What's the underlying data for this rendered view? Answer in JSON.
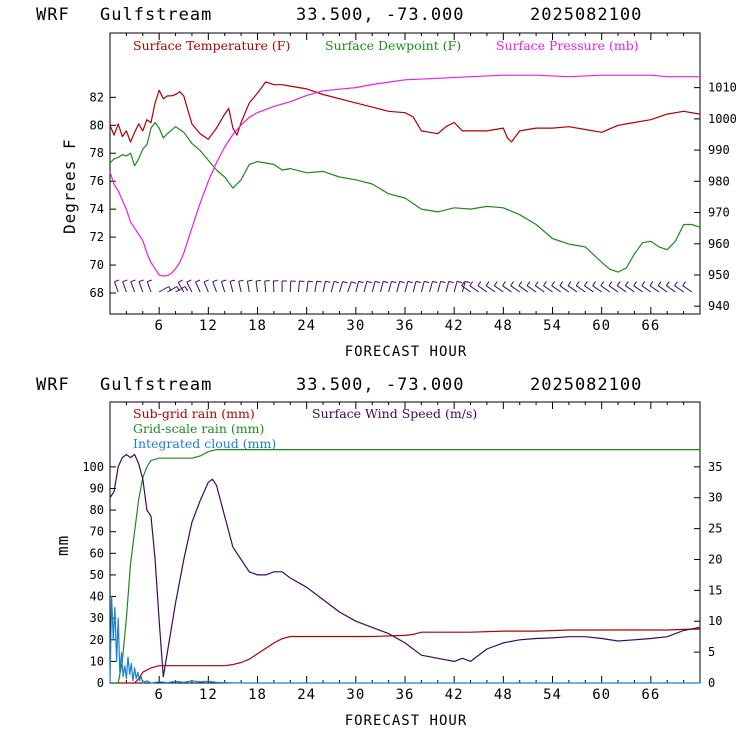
{
  "chart_data": [
    {
      "type": "line",
      "header": {
        "model": "WRF",
        "location": "Gulfstream",
        "coords": "33.500, -73.000",
        "run": "2025082100"
      },
      "xlabel": "FORECAST HOUR",
      "ylabel": "Degrees F",
      "xlim": [
        0,
        72
      ],
      "ylim": [
        66.5,
        86.6
      ],
      "y2lim": [
        937.5,
        1027.5
      ],
      "xticks": [
        6,
        12,
        18,
        24,
        30,
        36,
        42,
        48,
        54,
        60,
        66
      ],
      "xtick_labels": [
        "6",
        "12",
        "18",
        "24",
        "30",
        "36",
        "42",
        "48",
        "54",
        "60",
        "66"
      ],
      "yticks": [
        68,
        70,
        72,
        74,
        76,
        78,
        80,
        82
      ],
      "ytick_labels": [
        "68",
        "70",
        "72",
        "74",
        "76",
        "78",
        "80",
        "82"
      ],
      "y2ticks": [
        940,
        950,
        960,
        970,
        980,
        990,
        1000,
        1010
      ],
      "y2tick_labels": [
        "940",
        "950",
        "960",
        "970",
        "980",
        "990",
        "1000",
        "1010"
      ],
      "grid": false,
      "series": [
        {
          "name": "Surface Temperature (F)",
          "axis": "left",
          "color": "#b00000",
          "x": [
            0,
            0.5,
            1,
            1.5,
            2,
            2.5,
            3,
            3.5,
            4,
            4.5,
            5,
            5.5,
            6,
            6.5,
            7,
            7.5,
            8,
            8.5,
            9,
            9.5,
            10,
            11,
            12,
            13,
            14,
            14.5,
            15,
            15.5,
            16,
            17,
            18,
            19,
            20,
            21,
            22,
            24,
            26,
            28,
            30,
            32,
            34,
            36,
            37,
            38,
            39,
            40,
            41,
            42,
            43,
            44,
            46,
            48,
            48.5,
            49,
            50,
            52,
            54,
            56,
            58,
            60,
            62,
            64,
            66,
            68,
            70,
            72
          ],
          "y": [
            80,
            79.3,
            80.1,
            79.2,
            79.6,
            78.8,
            79.5,
            80.1,
            79.6,
            80.4,
            80.2,
            81.6,
            82.5,
            81.9,
            82.1,
            82.1,
            82.2,
            82.4,
            82.1,
            81.1,
            80.1,
            79.4,
            79,
            79.8,
            80.8,
            81.2,
            79.8,
            79.3,
            80.2,
            81.6,
            82.3,
            83.1,
            82.9,
            82.9,
            82.8,
            82.6,
            82.2,
            81.9,
            81.6,
            81.3,
            81,
            80.9,
            80.6,
            79.6,
            79.5,
            79.4,
            79.9,
            80.2,
            79.6,
            79.6,
            79.6,
            79.8,
            79.1,
            78.8,
            79.6,
            79.8,
            79.8,
            79.9,
            79.7,
            79.5,
            80,
            80.2,
            80.4,
            80.8,
            81,
            80.8
          ]
        },
        {
          "name": "Surface Dewpoint (F)",
          "axis": "left",
          "color": "#1e8a1e",
          "x": [
            0,
            0.5,
            1,
            1.5,
            2,
            2.5,
            3,
            3.5,
            4,
            4.5,
            5,
            5.5,
            6,
            6.5,
            7,
            8,
            9,
            10,
            11,
            12,
            13,
            14,
            15,
            16,
            17,
            18,
            19,
            20,
            21,
            22,
            24,
            26,
            28,
            30,
            32,
            34,
            36,
            38,
            40,
            42,
            44,
            46,
            48,
            50,
            52,
            54,
            56,
            58,
            60,
            61,
            62,
            63,
            64,
            65,
            66,
            67,
            68,
            69,
            70,
            71,
            72
          ],
          "y": [
            77.3,
            77.6,
            77.7,
            77.9,
            77.8,
            78,
            77.1,
            77.6,
            78.3,
            78.6,
            79.8,
            80.2,
            79.8,
            79.1,
            79.4,
            79.9,
            79.5,
            78.7,
            78.2,
            77.5,
            76.8,
            76.3,
            75.5,
            76.1,
            77.2,
            77.4,
            77.3,
            77.2,
            76.8,
            76.9,
            76.6,
            76.7,
            76.3,
            76.1,
            75.8,
            75.1,
            74.8,
            74,
            73.8,
            74.1,
            74,
            74.2,
            74.1,
            73.6,
            72.9,
            71.9,
            71.5,
            71.3,
            70.2,
            69.7,
            69.5,
            69.8,
            70.8,
            71.6,
            71.7,
            71.3,
            71.1,
            71.7,
            72.9,
            72.9,
            72.7
          ]
        },
        {
          "name": "Surface Pressure (mb)",
          "axis": "right",
          "color": "#e81fe8",
          "x": [
            0,
            0.5,
            1,
            1.5,
            2,
            2.5,
            3,
            3.5,
            4,
            4.5,
            5,
            5.5,
            6,
            6.5,
            7,
            7.5,
            8,
            8.5,
            9,
            9.5,
            10,
            11,
            12,
            13,
            14,
            15,
            16,
            17,
            18,
            20,
            22,
            24,
            26,
            28,
            30,
            32,
            36,
            40,
            44,
            48,
            52,
            56,
            60,
            64,
            66,
            68,
            72
          ],
          "y": [
            983,
            979,
            977,
            974,
            971,
            967,
            965,
            963,
            961,
            957,
            954,
            952,
            950,
            949.7,
            949.8,
            950.5,
            952,
            954,
            957,
            961,
            965,
            973,
            980,
            986,
            991,
            995,
            998,
            1000.5,
            1002,
            1004,
            1005.5,
            1007.5,
            1009,
            1009.5,
            1010,
            1011,
            1012.5,
            1013,
            1013.5,
            1014,
            1014,
            1013.5,
            1014,
            1014,
            1014,
            1013.5,
            1013.5
          ]
        }
      ],
      "wind_barbs": "present along the bottom of the top panel (no numeric labels)",
      "legend_placement": "top"
    },
    {
      "type": "line",
      "header": {
        "model": "WRF",
        "location": "Gulfstream",
        "coords": "33.500, -73.000",
        "run": "2025082100"
      },
      "xlabel": "FORECAST HOUR",
      "ylabel": "mm",
      "xlim": [
        0,
        72
      ],
      "ylim": [
        0,
        130
      ],
      "y2lim": [
        0,
        45.5
      ],
      "xticks": [
        6,
        12,
        18,
        24,
        30,
        36,
        42,
        48,
        54,
        60,
        66
      ],
      "xtick_labels": [
        "6",
        "12",
        "18",
        "24",
        "30",
        "36",
        "42",
        "48",
        "54",
        "60",
        "66"
      ],
      "yticks": [
        0,
        10,
        20,
        30,
        40,
        50,
        60,
        70,
        80,
        90,
        100
      ],
      "ytick_labels": [
        "0",
        "10",
        "20",
        "30",
        "40",
        "50",
        "60",
        "70",
        "80",
        "90",
        "100"
      ],
      "y2ticks": [
        0,
        5,
        10,
        15,
        20,
        25,
        30,
        35
      ],
      "y2tick_labels": [
        "0",
        "5",
        "10",
        "15",
        "20",
        "25",
        "30",
        "35"
      ],
      "grid": false,
      "series": [
        {
          "name": "Sub-grid rain (mm)",
          "axis": "left",
          "color": "#b00000",
          "x": [
            0,
            3,
            3.5,
            4,
            5,
            6,
            7,
            8,
            10,
            12,
            14,
            15,
            16,
            17,
            18,
            19,
            20,
            21,
            22,
            24,
            28,
            32,
            36,
            37,
            38,
            40,
            44,
            48,
            52,
            56,
            60,
            64,
            68,
            70,
            72
          ],
          "y": [
            0,
            0,
            2,
            5,
            7,
            8,
            8,
            8,
            8,
            8,
            8,
            8.5,
            9.5,
            11,
            13.5,
            16,
            18.5,
            20.5,
            21.5,
            21.5,
            21.5,
            21.5,
            22,
            22.5,
            23.5,
            23.5,
            23.5,
            24,
            24,
            24.5,
            24.5,
            24.5,
            24.5,
            24.8,
            25
          ]
        },
        {
          "name": "Grid-scale rain (mm)",
          "axis": "left",
          "color": "#1e8a1e",
          "x": [
            0,
            1,
            1.5,
            2,
            2.5,
            3,
            3.5,
            4,
            4.5,
            5,
            6,
            7,
            8,
            10,
            11,
            12,
            13,
            20,
            40,
            60,
            72
          ],
          "y": [
            0,
            0,
            10,
            30,
            55,
            70,
            85,
            95,
            100,
            103,
            104,
            104,
            104,
            104,
            105,
            107,
            108,
            108,
            108,
            108,
            108
          ]
        },
        {
          "name": "Integrated cloud (mm)",
          "axis": "left",
          "color": "#1a7fd4",
          "x": [
            0,
            0.2,
            0.4,
            0.6,
            0.8,
            1,
            1.2,
            1.4,
            1.6,
            1.8,
            2,
            2.2,
            2.4,
            2.6,
            2.8,
            3,
            3.2,
            3.4,
            3.6,
            3.8,
            4,
            4.5,
            5,
            6,
            7,
            8,
            9,
            10,
            11,
            12,
            13,
            14,
            16,
            20,
            30,
            40,
            50,
            60,
            72
          ],
          "y": [
            0,
            40,
            20,
            35,
            10,
            30,
            5,
            14,
            3,
            8,
            2,
            12,
            4,
            9,
            1,
            7,
            2,
            5,
            1,
            3,
            0,
            1,
            0,
            0.5,
            0.2,
            0.8,
            0.3,
            1,
            0.5,
            0.8,
            0.3,
            0.2,
            0,
            0,
            0,
            0,
            0,
            0,
            0
          ]
        },
        {
          "name": "Surface Wind Speed (m/s)",
          "axis": "right",
          "color": "#3b0a5f",
          "x": [
            0,
            0.5,
            1,
            1.5,
            2,
            2.5,
            3,
            3.5,
            4,
            4.5,
            5,
            5.5,
            6,
            6.5,
            7,
            8,
            9,
            10,
            11,
            12,
            12.5,
            13,
            14,
            15,
            16,
            17,
            18,
            19,
            20,
            21,
            22,
            24,
            26,
            28,
            30,
            32,
            34,
            36,
            38,
            40,
            42,
            43,
            44,
            46,
            48,
            50,
            52,
            54,
            56,
            58,
            60,
            62,
            64,
            66,
            68,
            70,
            72
          ],
          "y": [
            30,
            31,
            35,
            36.5,
            37,
            36.5,
            37,
            35.5,
            33,
            28,
            27,
            20,
            10,
            1,
            5,
            13,
            20,
            26,
            29.5,
            32.5,
            33,
            32,
            27,
            22,
            20,
            18,
            17.5,
            17.5,
            18,
            18,
            17,
            15.5,
            13.5,
            11.5,
            10,
            9,
            8,
            6.5,
            4.5,
            4,
            3.5,
            4,
            3.5,
            5.5,
            6.5,
            7,
            7.2,
            7.3,
            7.5,
            7.5,
            7.2,
            6.8,
            7,
            7.2,
            7.5,
            8.5,
            9
          ]
        }
      ],
      "legend_placement": "top-left"
    }
  ]
}
